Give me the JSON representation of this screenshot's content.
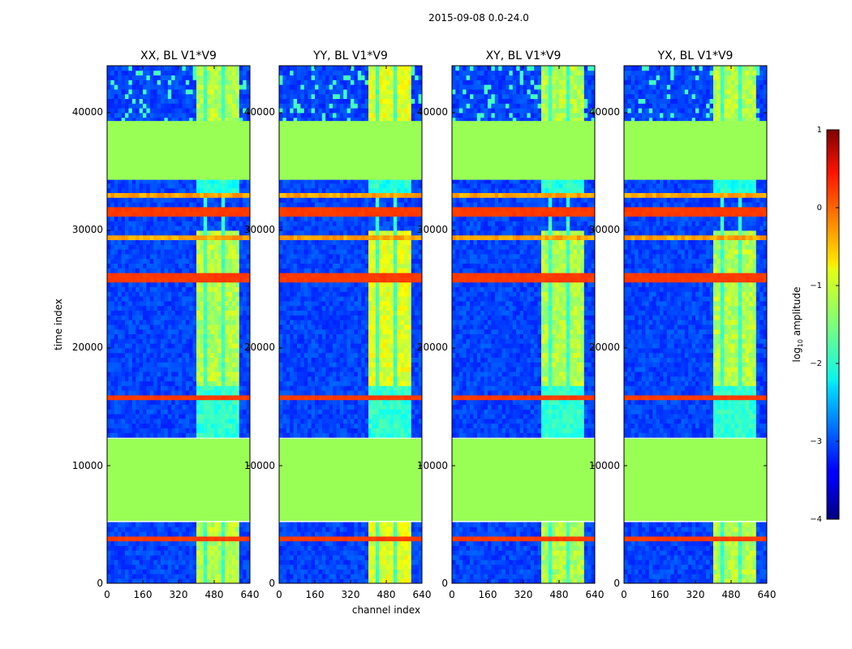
{
  "chart_data": {
    "type": "heatmap",
    "suptitle": "2015-09-08 0.0-24.0",
    "xlabel": "channel index",
    "ylabel": "time index",
    "xlim": [
      0,
      640
    ],
    "ylim": [
      0,
      44000
    ],
    "xticks": [
      0,
      160,
      320,
      480,
      640
    ],
    "yticks": [
      0,
      10000,
      20000,
      30000,
      40000
    ],
    "xtick_labels": [
      "0",
      "160",
      "320",
      "480",
      "640"
    ],
    "ytick_labels": [
      "0",
      "10000",
      "20000",
      "30000",
      "40000"
    ],
    "panels": [
      {
        "title": "XX, BL V1*V9"
      },
      {
        "title": "YY, BL V1*V9"
      },
      {
        "title": "XY, BL V1*V9"
      },
      {
        "title": "YX, BL V1*V9"
      }
    ],
    "colorbar": {
      "label_main": "log",
      "label_sub": "10",
      "label_rest": " amplitude",
      "range": [
        -4,
        1
      ],
      "ticks": [
        1,
        0,
        -1,
        -2,
        -3,
        -4
      ],
      "tick_labels": [
        "1",
        "0",
        "−1",
        "−2",
        "−3",
        "−4"
      ],
      "colormap": "jet"
    },
    "masked_time_ranges": [
      [
        5300,
        12300
      ],
      [
        34300,
        39300
      ]
    ],
    "masked_value": -1.1,
    "rfi_band_channels": [
      [
        400,
        600
      ]
    ],
    "colors": {
      "masked": "#99ff55",
      "hot_band": "#ff6600",
      "background_low": "#1a33ff",
      "cbar_top": "#7f0000",
      "cbar_bottom": "#00007f"
    }
  }
}
